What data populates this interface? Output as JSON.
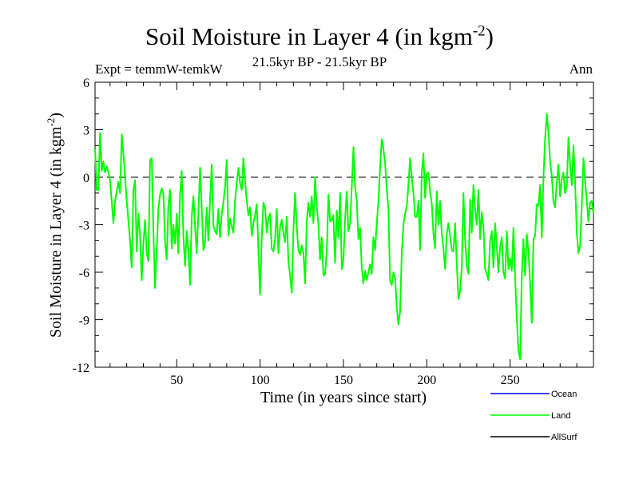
{
  "chart_data": {
    "type": "line",
    "title": "Soil Moisture in Layer 4 (in kgm",
    "title_sup": "-2",
    "title_close": ")",
    "subtitle_left": "Expt = temmW-temkW",
    "subtitle_center": "21.5kyr BP - 21.5kyr BP",
    "subtitle_right": "Ann",
    "xlabel": "Time (in years since start)",
    "ylabel": "Soil Moisture in Layer 4 (in kgm",
    "ylabel_sup": "-2",
    "ylabel_close": ")",
    "xlim": [
      1,
      300
    ],
    "ylim": [
      -12,
      6
    ],
    "xticks": [
      50,
      100,
      150,
      200,
      250
    ],
    "xtick_labels": [
      "50",
      "100",
      "150",
      "200",
      "250"
    ],
    "yticks": [
      6,
      3,
      0,
      -3,
      -6,
      -9,
      -12
    ],
    "ytick_labels": [
      "6",
      "3",
      "0",
      "-3",
      "-6",
      "-9",
      "-12"
    ],
    "reference_line": 0,
    "legend": [
      "Ocean",
      "Land",
      "AllSurf"
    ],
    "series": [
      {
        "name": "Land",
        "color": "#00ff00",
        "points": [
          [
            1,
            1.8
          ],
          [
            2,
            -0.8
          ],
          [
            3,
            -0.8
          ],
          [
            4,
            2.8
          ],
          [
            5,
            0.4
          ],
          [
            6,
            1
          ],
          [
            7,
            0.3
          ],
          [
            8,
            0.7
          ],
          [
            9,
            0.3
          ],
          [
            10,
            -0.2
          ],
          [
            12,
            -2.9
          ],
          [
            13,
            -1.5
          ],
          [
            14,
            -0.9
          ],
          [
            15,
            -0.3
          ],
          [
            16,
            -1
          ],
          [
            17,
            2.7
          ],
          [
            18,
            1.5
          ],
          [
            20,
            -1.5
          ],
          [
            22,
            -4
          ],
          [
            23,
            -5.7
          ],
          [
            24,
            -0.8
          ],
          [
            25,
            -0.2
          ],
          [
            26,
            -4.7
          ],
          [
            27,
            -2.3
          ],
          [
            28,
            -3.6
          ],
          [
            29,
            -6.5
          ],
          [
            30,
            -4.2
          ],
          [
            31,
            -2.7
          ],
          [
            32,
            -4.8
          ],
          [
            33,
            -5.3
          ],
          [
            34,
            1.1
          ],
          [
            35,
            1.2
          ],
          [
            36,
            -3.3
          ],
          [
            37,
            -7
          ],
          [
            38,
            -4.6
          ],
          [
            39,
            -2
          ],
          [
            40,
            -1.1
          ],
          [
            41,
            -0.7
          ],
          [
            42,
            -1.1
          ],
          [
            43,
            -4.1
          ],
          [
            44,
            -5.2
          ],
          [
            45,
            -1.8
          ],
          [
            46,
            -0.8
          ],
          [
            47,
            -4.5
          ],
          [
            48,
            -3
          ],
          [
            49,
            -4.2
          ],
          [
            50,
            -2.3
          ],
          [
            51,
            -4.8
          ],
          [
            52,
            -1.1
          ],
          [
            53,
            0.4
          ],
          [
            54,
            -3.7
          ],
          [
            55,
            -5.6
          ],
          [
            56,
            -3.4
          ],
          [
            57,
            -4.7
          ],
          [
            58,
            -6.8
          ],
          [
            59,
            -2.5
          ],
          [
            60,
            -1.2
          ],
          [
            61,
            -3.1
          ],
          [
            62,
            -4.8
          ],
          [
            63,
            -2.2
          ],
          [
            64,
            0.6
          ],
          [
            65,
            -2
          ],
          [
            66,
            -4.6
          ],
          [
            67,
            -4.1
          ],
          [
            68,
            -1.9
          ],
          [
            69,
            -4
          ],
          [
            70,
            -1.4
          ],
          [
            71,
            0.8
          ],
          [
            72,
            -3.1
          ],
          [
            73,
            -3.4
          ],
          [
            74,
            -3.6
          ],
          [
            75,
            -2
          ],
          [
            76,
            -3.8
          ],
          [
            77,
            -2.3
          ],
          [
            78,
            -1.6
          ],
          [
            79,
            -0.6
          ],
          [
            80,
            1.1
          ],
          [
            81,
            -3.7
          ],
          [
            82,
            -2.6
          ],
          [
            83,
            -3.1
          ],
          [
            84,
            -3.5
          ],
          [
            85,
            -1.5
          ],
          [
            86,
            -0.3
          ],
          [
            87,
            0.6
          ],
          [
            88,
            -0.4
          ],
          [
            89,
            -0.8
          ],
          [
            90,
            1.2
          ],
          [
            91,
            -0.2
          ],
          [
            92,
            -1.5
          ],
          [
            93,
            -2.4
          ],
          [
            94,
            -1.9
          ],
          [
            95,
            -3.7
          ],
          [
            96,
            -2.9
          ],
          [
            97,
            -2.4
          ],
          [
            98,
            -1.7
          ],
          [
            99,
            -4.5
          ],
          [
            100,
            -7.4
          ],
          [
            101,
            -3.8
          ],
          [
            102,
            -1.6
          ],
          [
            103,
            -1.9
          ],
          [
            104,
            -3.5
          ],
          [
            105,
            -2.6
          ],
          [
            106,
            -2.3
          ],
          [
            107,
            -4.5
          ],
          [
            108,
            -4.7
          ],
          [
            109,
            -3.9
          ],
          [
            110,
            -2
          ],
          [
            111,
            -4.8
          ],
          [
            112,
            -3.1
          ],
          [
            113,
            -2.7
          ],
          [
            114,
            -3.5
          ],
          [
            115,
            -4.1
          ],
          [
            116,
            -2.5
          ],
          [
            117,
            -5.3
          ],
          [
            118,
            -6.2
          ],
          [
            119,
            -7.3
          ],
          [
            120,
            -3.4
          ],
          [
            121,
            -1
          ],
          [
            122,
            -3.1
          ],
          [
            123,
            -4.6
          ],
          [
            124,
            -4.9
          ],
          [
            125,
            -4.3
          ],
          [
            126,
            -4.8
          ],
          [
            127,
            -6.7
          ],
          [
            128,
            -2.8
          ],
          [
            129,
            -1.6
          ],
          [
            130,
            -2.5
          ],
          [
            131,
            -1.2
          ],
          [
            132,
            -2.9
          ],
          [
            133,
            0
          ],
          [
            134,
            -1.9
          ],
          [
            135,
            -3
          ],
          [
            136,
            -5.2
          ],
          [
            137,
            -3.8
          ],
          [
            138,
            -6.2
          ],
          [
            139,
            -6.1
          ],
          [
            140,
            -4.7
          ],
          [
            141,
            -1.1
          ],
          [
            142,
            -2.8
          ],
          [
            143,
            -2.7
          ],
          [
            144,
            -2.4
          ],
          [
            145,
            -5.4
          ],
          [
            146,
            -2.1
          ],
          [
            147,
            -3.8
          ],
          [
            148,
            -1
          ],
          [
            149,
            -5.8
          ],
          [
            150,
            -5.2
          ],
          [
            151,
            -2.7
          ],
          [
            152,
            -0.9
          ],
          [
            153,
            -3.4
          ],
          [
            154,
            -2.9
          ],
          [
            155,
            -0.6
          ],
          [
            156,
            1.9
          ],
          [
            157,
            -0.6
          ],
          [
            158,
            -1.5
          ],
          [
            159,
            -3.9
          ],
          [
            160,
            -3.2
          ],
          [
            161,
            -5.7
          ],
          [
            162,
            -6.7
          ],
          [
            163,
            -5.9
          ],
          [
            164,
            -6.5
          ],
          [
            165,
            -6
          ],
          [
            166,
            -5.5
          ],
          [
            167,
            -6.1
          ],
          [
            168,
            -3.8
          ],
          [
            169,
            -4.6
          ],
          [
            170,
            -2.9
          ],
          [
            171,
            -1.5
          ],
          [
            172,
            0.7
          ],
          [
            173,
            2.4
          ],
          [
            174,
            1.8
          ],
          [
            175,
            0.9
          ],
          [
            176,
            -0.7
          ],
          [
            177,
            -2
          ],
          [
            178,
            -6.6
          ],
          [
            179,
            -6.8
          ],
          [
            180,
            -6
          ],
          [
            181,
            -6.4
          ],
          [
            182,
            -8.2
          ],
          [
            183,
            -9.3
          ],
          [
            184,
            -8.5
          ],
          [
            185,
            -4.8
          ],
          [
            186,
            -3
          ],
          [
            187,
            -2.3
          ],
          [
            188,
            -1.8
          ],
          [
            189,
            -0.5
          ],
          [
            190,
            1.2
          ],
          [
            191,
            0
          ],
          [
            192,
            -1
          ],
          [
            193,
            -2.5
          ],
          [
            194,
            -2.5
          ],
          [
            195,
            -1.5
          ],
          [
            196,
            -4.6
          ],
          [
            197,
            0.3
          ],
          [
            198,
            1.5
          ],
          [
            199,
            -1.3
          ],
          [
            200,
            0.2
          ],
          [
            201,
            0.3
          ],
          [
            202,
            -0.9
          ],
          [
            203,
            -1.7
          ],
          [
            204,
            -3.6
          ],
          [
            205,
            -4.5
          ],
          [
            206,
            -0.9
          ],
          [
            207,
            -3
          ],
          [
            208,
            -1.5
          ],
          [
            209,
            -3.6
          ],
          [
            210,
            -4.5
          ],
          [
            211,
            -5.8
          ],
          [
            212,
            -3.6
          ],
          [
            213,
            -2.9
          ],
          [
            214,
            -3.7
          ],
          [
            215,
            -4.6
          ],
          [
            216,
            -4.7
          ],
          [
            217,
            -2.9
          ],
          [
            218,
            -5.5
          ],
          [
            219,
            -7.7
          ],
          [
            220,
            -7.2
          ],
          [
            221,
            -5.7
          ],
          [
            222,
            -1
          ],
          [
            223,
            -3.9
          ],
          [
            224,
            -5.6
          ],
          [
            225,
            -6.1
          ],
          [
            226,
            -1.4
          ],
          [
            227,
            -3.5
          ],
          [
            228,
            -0.5
          ],
          [
            229,
            -2
          ],
          [
            230,
            -3
          ],
          [
            231,
            -0.8
          ],
          [
            232,
            -3.9
          ],
          [
            233,
            -2.2
          ],
          [
            234,
            -3.2
          ],
          [
            235,
            -5.8
          ],
          [
            236,
            -6.1
          ],
          [
            237,
            -6.5
          ],
          [
            238,
            -4
          ],
          [
            239,
            -3.4
          ],
          [
            240,
            -5.7
          ],
          [
            241,
            -2.9
          ],
          [
            242,
            -4.4
          ],
          [
            243,
            -6
          ],
          [
            244,
            -4.4
          ],
          [
            245,
            -3.8
          ],
          [
            246,
            -6
          ],
          [
            247,
            -6.4
          ],
          [
            248,
            -3.4
          ],
          [
            249,
            -5.8
          ],
          [
            250,
            -5.1
          ],
          [
            251,
            -5.9
          ],
          [
            252,
            -3.2
          ],
          [
            253,
            -6.3
          ],
          [
            254,
            -8.9
          ],
          [
            255,
            -11
          ],
          [
            256,
            -11.5
          ],
          [
            257,
            -6.1
          ],
          [
            258,
            -3.9
          ],
          [
            259,
            -6.2
          ],
          [
            260,
            -3.6
          ],
          [
            261,
            -4.7
          ],
          [
            262,
            -6.7
          ],
          [
            263,
            -9.2
          ],
          [
            264,
            -3.9
          ],
          [
            265,
            -3.7
          ],
          [
            266,
            -1.7
          ],
          [
            267,
            -1.8
          ],
          [
            268,
            -0.5
          ],
          [
            269,
            -3.8
          ],
          [
            270,
            0
          ],
          [
            271,
            2.5
          ],
          [
            272,
            4
          ],
          [
            273,
            2.8
          ],
          [
            274,
            1
          ],
          [
            275,
            0.1
          ],
          [
            276,
            -1.5
          ],
          [
            277,
            -1.9
          ],
          [
            278,
            -0.3
          ],
          [
            279,
            0.8
          ],
          [
            280,
            -1.2
          ],
          [
            281,
            -0.1
          ],
          [
            282,
            0.3
          ],
          [
            283,
            -1
          ],
          [
            284,
            -0.6
          ],
          [
            285,
            2.5
          ],
          [
            286,
            0.8
          ],
          [
            287,
            -0.5
          ],
          [
            288,
            2
          ],
          [
            289,
            -0.3
          ],
          [
            290,
            -3.5
          ],
          [
            291,
            -4.8
          ],
          [
            292,
            -4.3
          ],
          [
            293,
            -1.8
          ],
          [
            294,
            1.2
          ],
          [
            295,
            -0.3
          ],
          [
            296,
            -1.5
          ],
          [
            297,
            -2.8
          ],
          [
            298,
            -1.6
          ],
          [
            299,
            -1.5
          ],
          [
            300,
            -2.3
          ]
        ]
      },
      {
        "name": "Ocean",
        "color": "#0000ff",
        "points": []
      },
      {
        "name": "AllSurf",
        "color": "#000000",
        "points": []
      }
    ]
  }
}
